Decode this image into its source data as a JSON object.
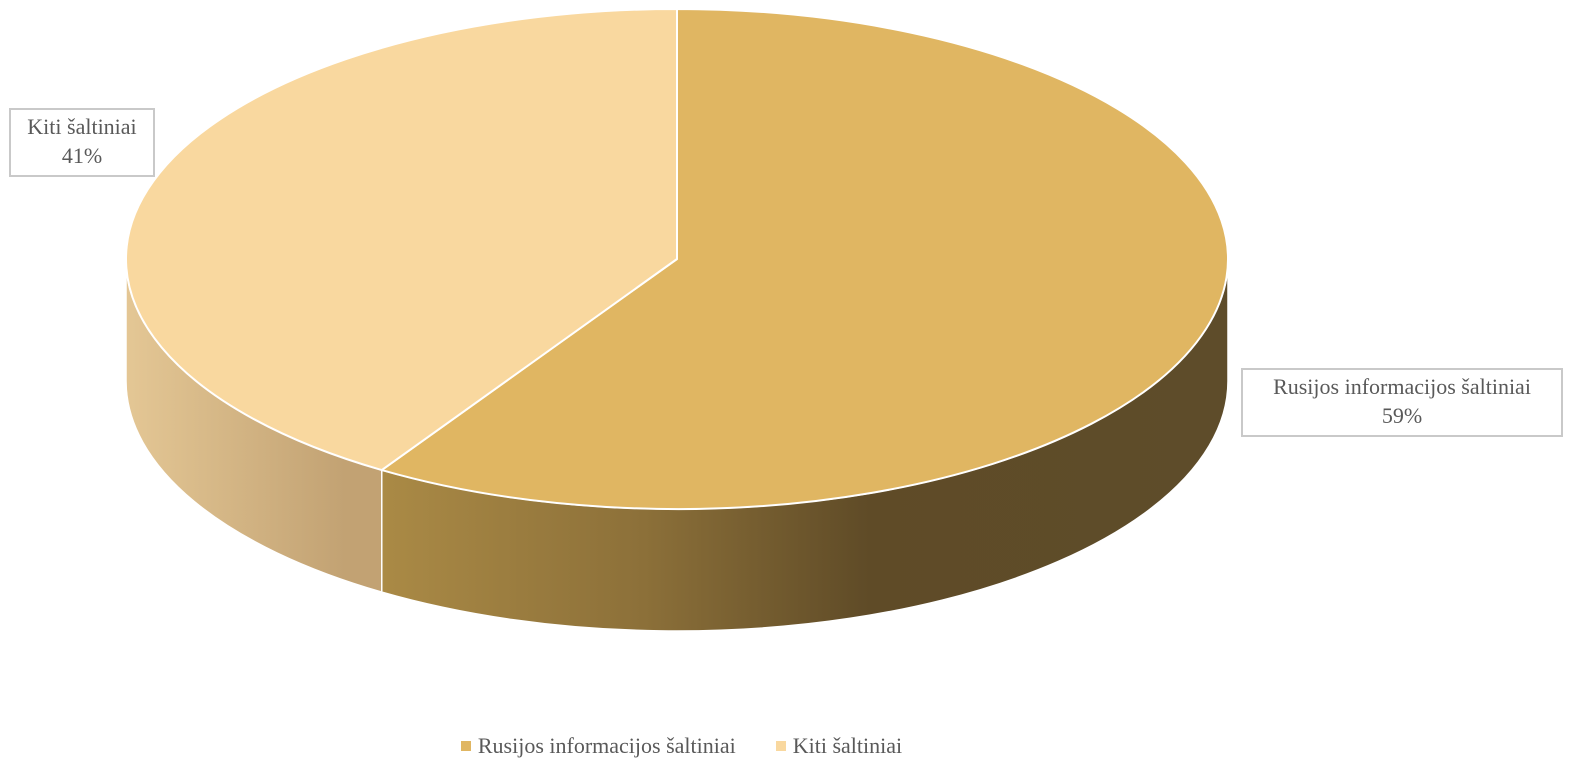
{
  "chart_data": {
    "type": "pie",
    "three_d": true,
    "title": "",
    "categories": [
      "Rusijos informacijos šaltiniai",
      "Kiti šaltiniai"
    ],
    "values": [
      59,
      41
    ],
    "value_labels": [
      "59%",
      "41%"
    ],
    "colors": [
      "#e0b662",
      "#f9d89f"
    ],
    "side_colors": [
      "#c29a4e",
      "#d7b782"
    ],
    "legend": {
      "position": "bottom",
      "entries": [
        "Rusijos informacijos šaltiniai",
        "Kiti šaltiniai"
      ]
    }
  }
}
